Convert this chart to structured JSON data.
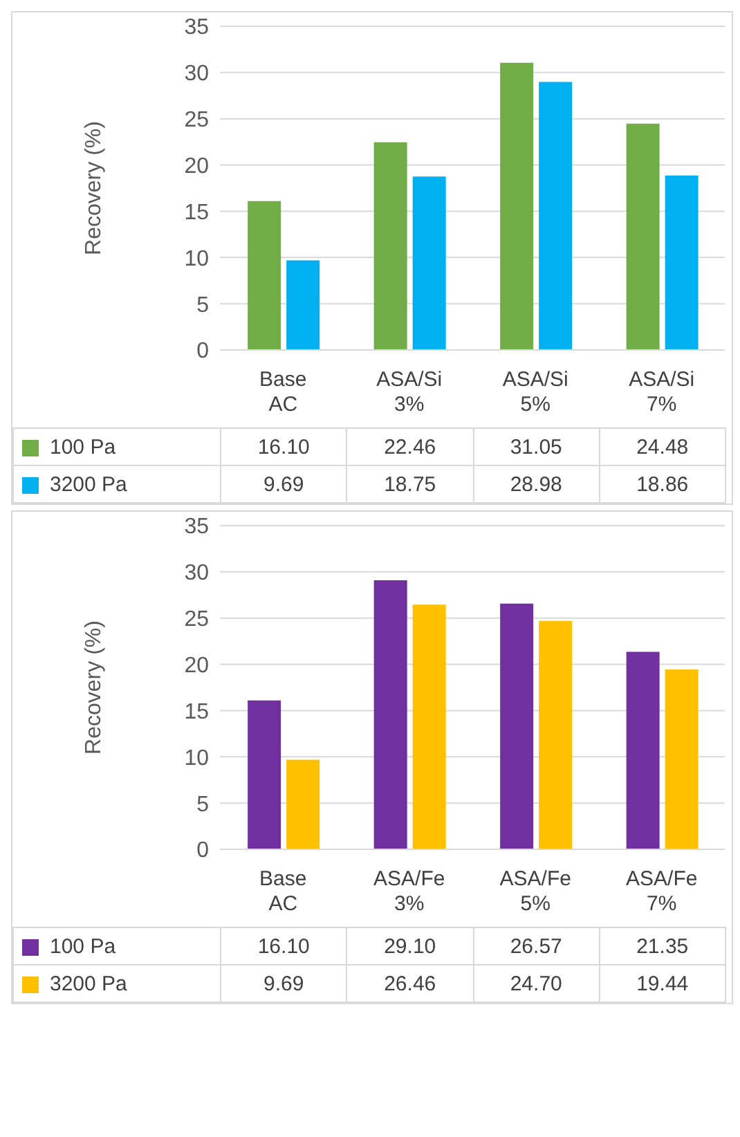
{
  "chart_data": [
    {
      "type": "bar",
      "ylabel": "Recovery (%)",
      "categories": [
        "Base AC",
        "ASA/Si 3%",
        "ASA/Si 5%",
        "ASA/Si 7%"
      ],
      "ylim": [
        0,
        35
      ],
      "yticks": [
        0,
        5,
        10,
        15,
        20,
        25,
        30,
        35
      ],
      "grid": "y",
      "legend": "bottom",
      "series": [
        {
          "name": "100 Pa",
          "color": "#70ad47",
          "values": [
            16.1,
            22.46,
            31.05,
            24.48
          ],
          "value_labels": [
            "16.10",
            "22.46",
            "31.05",
            "24.48"
          ]
        },
        {
          "name": "3200 Pa",
          "color": "#00b0f0",
          "values": [
            9.69,
            18.75,
            28.98,
            18.86
          ],
          "value_labels": [
            "9.69",
            "18.75",
            "28.98",
            "18.86"
          ]
        }
      ]
    },
    {
      "type": "bar",
      "ylabel": "Recovery (%)",
      "categories": [
        "Base AC",
        "ASA/Fe 3%",
        "ASA/Fe 5%",
        "ASA/Fe 7%"
      ],
      "ylim": [
        0,
        35
      ],
      "yticks": [
        0,
        5,
        10,
        15,
        20,
        25,
        30,
        35
      ],
      "grid": "y",
      "legend": "bottom",
      "series": [
        {
          "name": "100 Pa",
          "color": "#7030a0",
          "values": [
            16.1,
            29.1,
            26.57,
            21.35
          ],
          "value_labels": [
            "16.10",
            "29.10",
            "26.57",
            "21.35"
          ]
        },
        {
          "name": "3200 Pa",
          "color": "#ffc000",
          "values": [
            9.69,
            26.46,
            24.7,
            19.44
          ],
          "value_labels": [
            "9.69",
            "26.46",
            "24.70",
            "19.44"
          ]
        }
      ]
    }
  ]
}
